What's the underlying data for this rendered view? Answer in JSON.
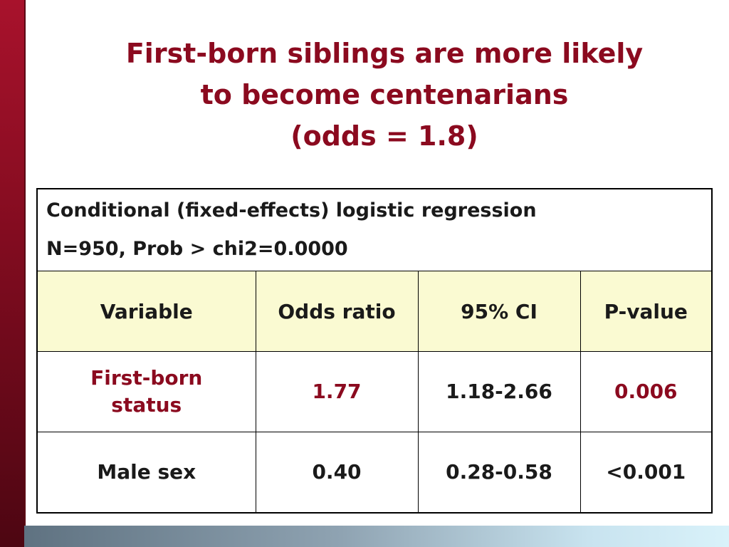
{
  "slide": {
    "title_lines": [
      "First-born siblings are more likely",
      "to become centenarians",
      "(odds = 1.8)"
    ],
    "colors": {
      "title": "#8b0a1f",
      "highlight": "#8b0a1f",
      "header_fill": "#fafad2",
      "left_bar": "#8a0d22"
    }
  },
  "table": {
    "info_lines": [
      "Conditional (fixed-effects) logistic regression",
      "N=950, Prob > chi2=0.0000"
    ],
    "headers": [
      "Variable",
      "Odds ratio",
      "95% CI",
      "P-value"
    ],
    "rows": [
      {
        "variable": "First-born status",
        "odds_ratio": "1.77",
        "ci": "1.18-2.66",
        "p_value": "0.006"
      },
      {
        "variable": "Male sex",
        "odds_ratio": "0.40",
        "ci": "0.28-0.58",
        "p_value": "<0.001"
      }
    ]
  }
}
